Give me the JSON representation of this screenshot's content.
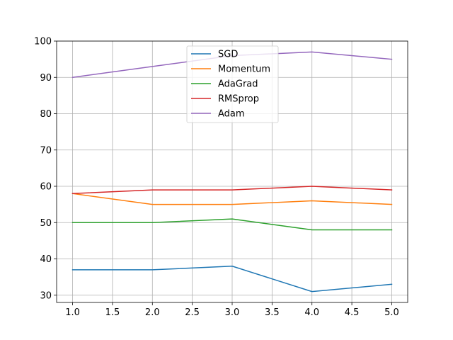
{
  "chart_data": {
    "type": "line",
    "title": "",
    "xlabel": "",
    "ylabel": "",
    "x": [
      1,
      2,
      3,
      4,
      5
    ],
    "xlim": [
      0.8,
      5.2
    ],
    "ylim": [
      28,
      100
    ],
    "xticks": [
      "1.0",
      "1.5",
      "2.0",
      "2.5",
      "3.0",
      "3.5",
      "4.0",
      "4.5",
      "5.0"
    ],
    "yticks": [
      "30",
      "40",
      "50",
      "60",
      "70",
      "80",
      "90",
      "100"
    ],
    "grid": true,
    "legend_position": "top-center",
    "series": [
      {
        "name": "SGD",
        "color": "#1f77b4",
        "values": [
          37,
          37,
          38,
          31,
          33
        ]
      },
      {
        "name": "Momentum",
        "color": "#ff7f0e",
        "values": [
          58,
          55,
          55,
          56,
          55
        ]
      },
      {
        "name": "AdaGrad",
        "color": "#2ca02c",
        "values": [
          50,
          50,
          51,
          48,
          48
        ]
      },
      {
        "name": "RMSprop",
        "color": "#d62728",
        "values": [
          58,
          59,
          59,
          60,
          59
        ]
      },
      {
        "name": "Adam",
        "color": "#9467bd",
        "values": [
          90,
          93,
          96,
          97,
          95
        ]
      }
    ]
  }
}
